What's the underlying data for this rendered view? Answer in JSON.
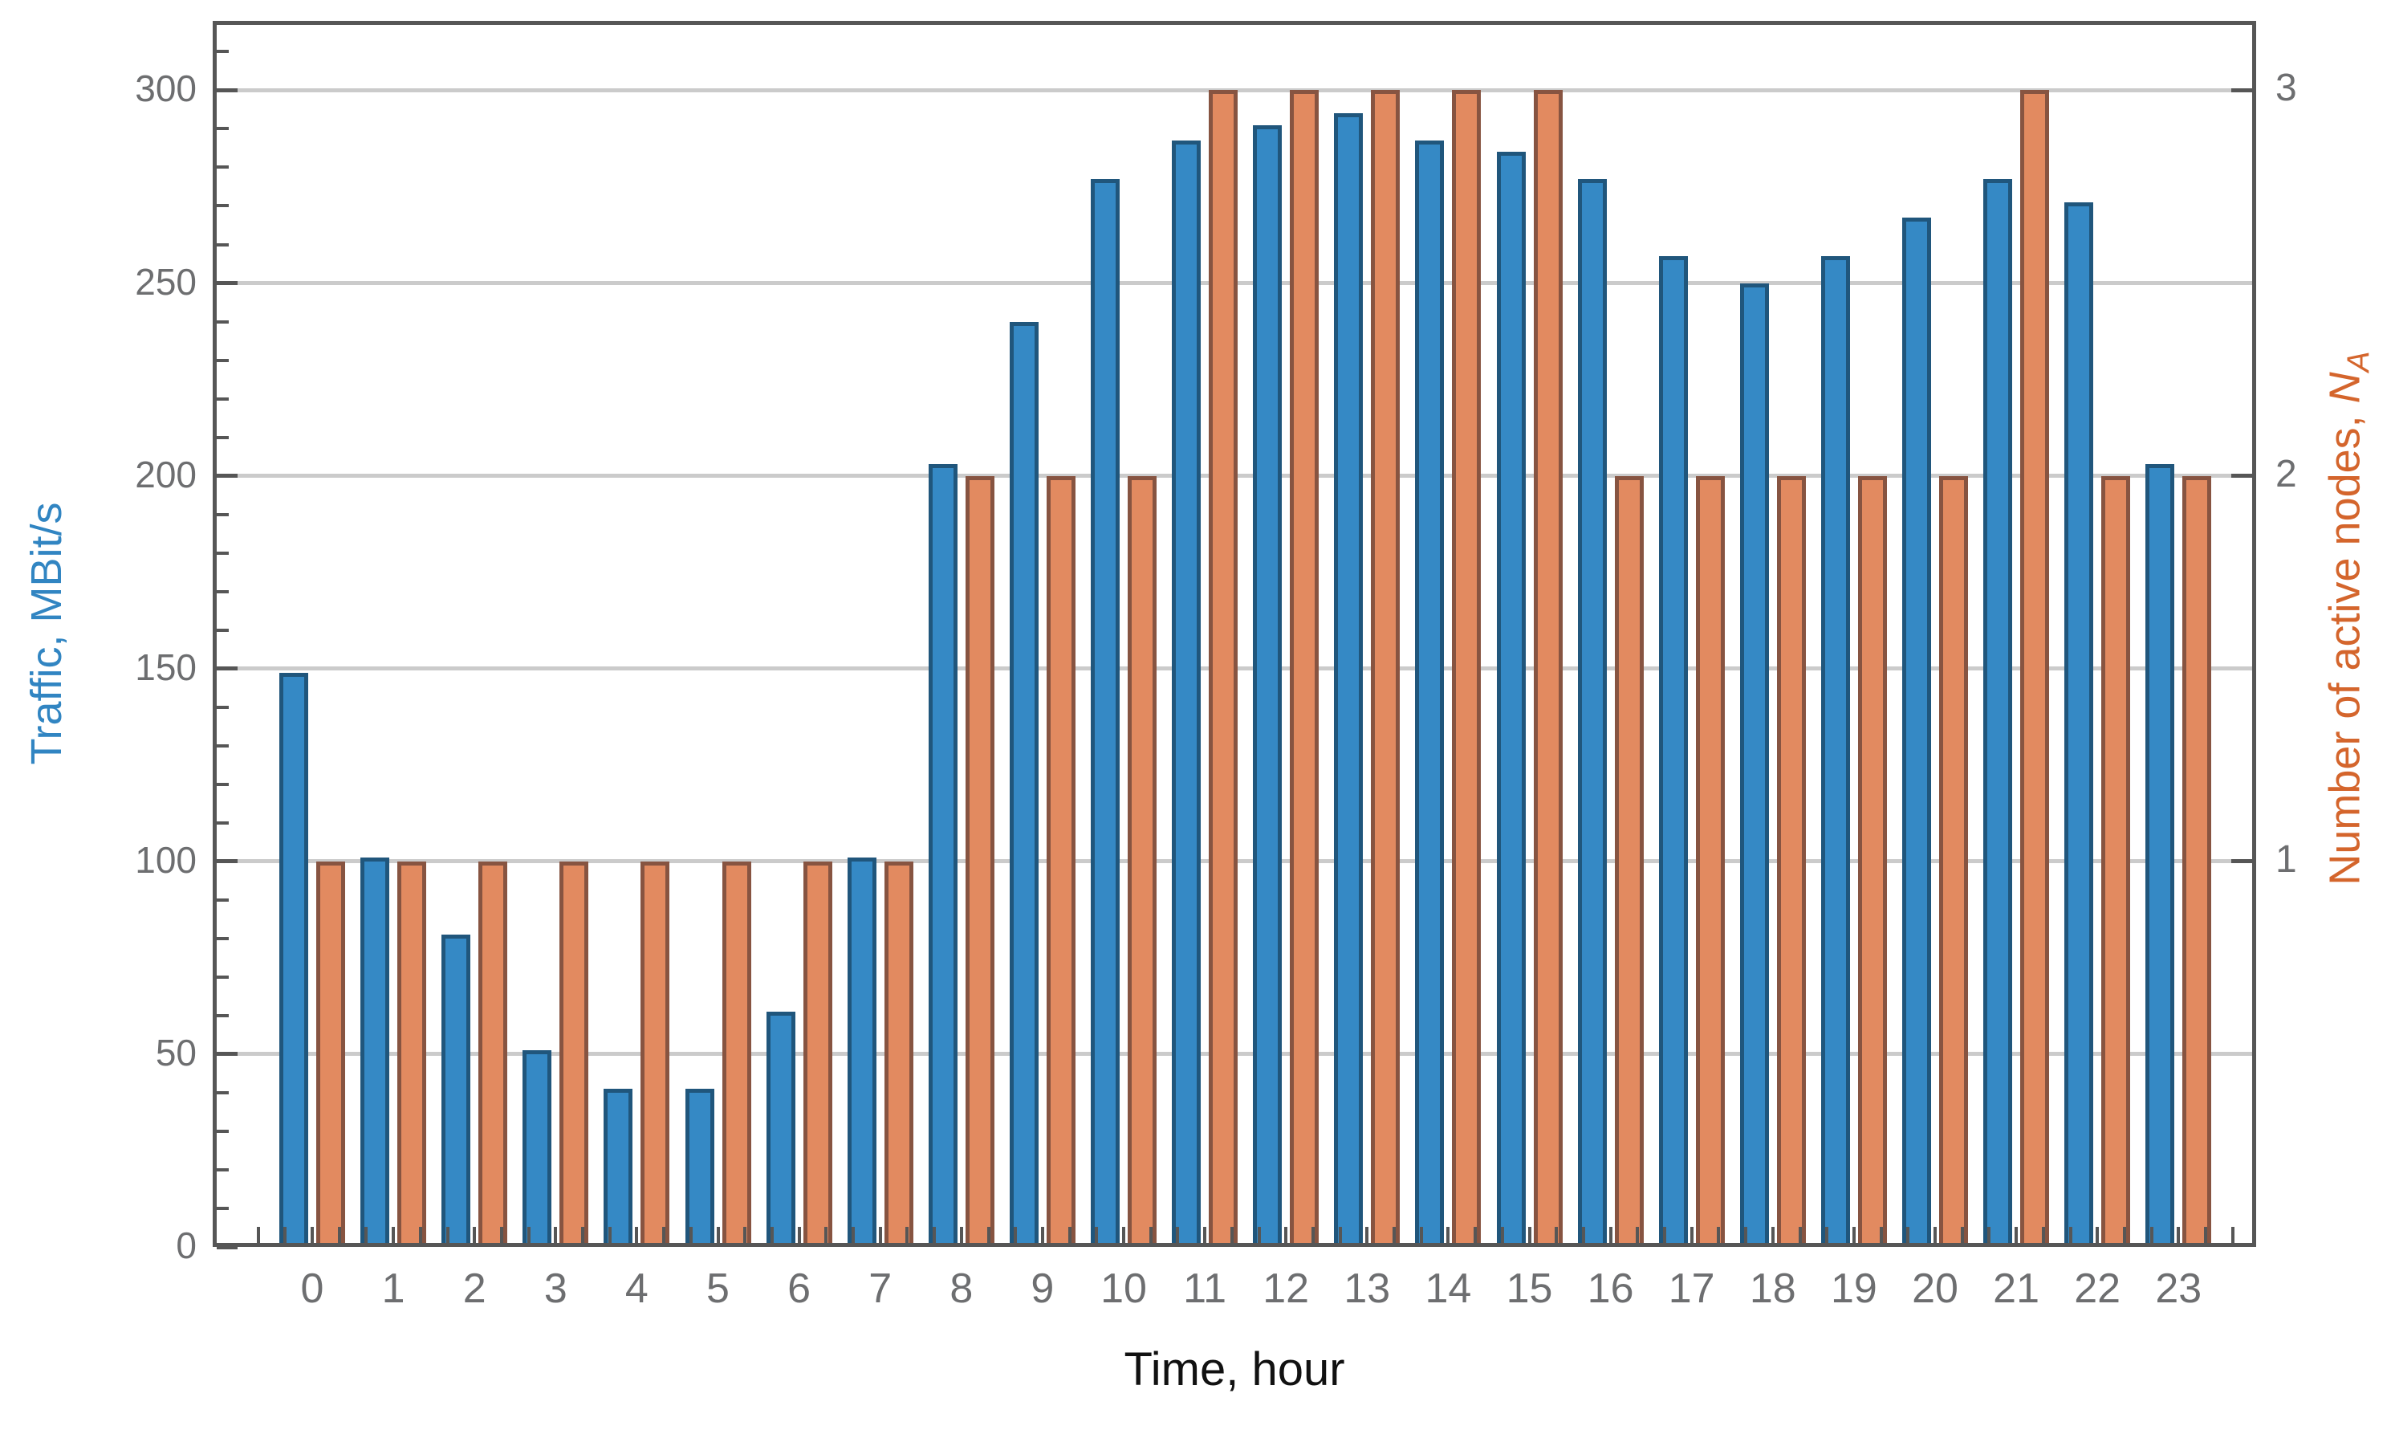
{
  "figure": {
    "background_color": "#ffffff",
    "axis_box_color": "#565656",
    "gridline_color": "#cbcbcb",
    "tick_label_color": "#6d6e70",
    "left_axis": {
      "title": "Traffic, MBit/s",
      "title_color": "#3185c2",
      "tick_labels": [
        "0",
        "50",
        "100",
        "150",
        "200",
        "250",
        "300"
      ],
      "tick_values": [
        0,
        50,
        100,
        150,
        200,
        250,
        300
      ],
      "minor_tick_step": 10
    },
    "right_axis": {
      "title_prefix": "Number of active nodes, ",
      "title_symbol": "N",
      "title_subscript": "A",
      "title_color": "#d4652c",
      "tick_labels": [
        "1",
        "2",
        "3"
      ],
      "tick_values": [
        1,
        2,
        3
      ]
    },
    "x_axis": {
      "title": "Time, hour",
      "tick_labels": [
        "0",
        "1",
        "2",
        "3",
        "4",
        "5",
        "6",
        "7",
        "8",
        "9",
        "10",
        "11",
        "12",
        "13",
        "14",
        "15",
        "16",
        "17",
        "18",
        "19",
        "20",
        "21",
        "22",
        "23"
      ]
    }
  },
  "chart_data": {
    "type": "bar",
    "title": "",
    "categories": [
      0,
      1,
      2,
      3,
      4,
      5,
      6,
      7,
      8,
      9,
      10,
      11,
      12,
      13,
      14,
      15,
      16,
      17,
      18,
      19,
      20,
      21,
      22,
      23
    ],
    "xlabel": "Time, hour",
    "series": [
      {
        "name": "Traffic, MBit/s",
        "axis": "left",
        "fill_color": "#3589c5",
        "edge_color": "#20567c",
        "values": [
          149,
          101,
          81,
          51,
          41,
          41,
          61,
          101,
          203,
          240,
          277,
          287,
          291,
          294,
          287,
          284,
          277,
          257,
          250,
          257,
          267,
          277,
          271,
          203
        ]
      },
      {
        "name": "Number of active nodes, N_A",
        "axis": "right",
        "fill_color": "#e28a60",
        "edge_color": "#875441",
        "values": [
          1,
          1,
          1,
          1,
          1,
          1,
          1,
          1,
          2,
          2,
          2,
          3,
          3,
          3,
          3,
          3,
          2,
          2,
          2,
          2,
          2,
          3,
          2,
          2
        ]
      }
    ],
    "left_ylabel": "Traffic, MBit/s",
    "right_ylabel": "Number of active nodes, N_A",
    "left_ylim": [
      0,
      318
    ],
    "right_ylim": [
      0,
      3.18
    ],
    "right_axis_unit_in_left_units": 100,
    "grid": "horizontal-major",
    "legend": "none"
  }
}
